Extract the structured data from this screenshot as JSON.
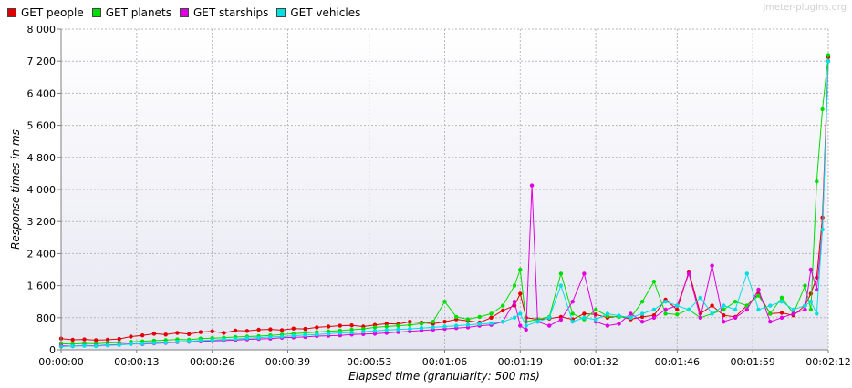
{
  "watermark": "jmeter-plugins.org",
  "chart_data": {
    "type": "line",
    "title": "",
    "xlabel": "Elapsed time (granularity: 500 ms)",
    "ylabel": "Response times in ms",
    "x_unit": "seconds",
    "xlim": [
      0,
      132
    ],
    "ylim": [
      0,
      8000
    ],
    "y_ticks": [
      0,
      800,
      1600,
      2400,
      3200,
      4000,
      4800,
      5600,
      6400,
      7200,
      8000
    ],
    "y_tick_labels": [
      "0",
      "800",
      "1 600",
      "2 400",
      "3 200",
      "4 000",
      "4 800",
      "5 600",
      "6 400",
      "7 200",
      "8 000"
    ],
    "x_ticks": [
      0,
      13,
      26,
      39,
      53,
      66,
      79,
      92,
      106,
      119,
      132
    ],
    "x_tick_labels": [
      "00:00:00",
      "00:00:13",
      "00:00:26",
      "00:00:39",
      "00:00:53",
      "00:01:06",
      "00:01:19",
      "00:01:32",
      "00:01:46",
      "00:01:59",
      "00:02:12"
    ],
    "grid": true,
    "legend_position": "top-left",
    "series": [
      {
        "name": "GET people",
        "color": "#e00000",
        "x": [
          0,
          2,
          4,
          6,
          8,
          10,
          12,
          14,
          16,
          18,
          20,
          22,
          24,
          26,
          28,
          30,
          32,
          34,
          36,
          38,
          40,
          42,
          44,
          46,
          48,
          50,
          52,
          54,
          56,
          58,
          60,
          62,
          64,
          66,
          68,
          70,
          72,
          74,
          76,
          78,
          79,
          80,
          82,
          84,
          86,
          88,
          90,
          92,
          94,
          96,
          98,
          100,
          102,
          104,
          106,
          108,
          110,
          112,
          114,
          116,
          118,
          120,
          122,
          124,
          126,
          128,
          129,
          130,
          131,
          132
        ],
        "y": [
          280,
          250,
          260,
          240,
          250,
          270,
          330,
          360,
          400,
          380,
          420,
          390,
          440,
          460,
          420,
          480,
          470,
          500,
          510,
          490,
          530,
          520,
          560,
          580,
          600,
          610,
          580,
          620,
          650,
          640,
          700,
          680,
          650,
          700,
          760,
          720,
          680,
          800,
          980,
          1100,
          1400,
          800,
          760,
          780,
          820,
          760,
          900,
          880,
          800,
          840,
          760,
          820,
          860,
          1250,
          1000,
          1950,
          900,
          1100,
          860,
          820,
          1100,
          1400,
          900,
          920,
          860,
          1100,
          1400,
          1800,
          3300,
          7300
        ]
      },
      {
        "name": "GET planets",
        "color": "#00dd00",
        "x": [
          0,
          2,
          4,
          6,
          8,
          10,
          12,
          14,
          16,
          18,
          20,
          22,
          24,
          26,
          28,
          30,
          32,
          34,
          36,
          38,
          40,
          42,
          44,
          46,
          48,
          50,
          52,
          54,
          56,
          58,
          60,
          62,
          64,
          66,
          68,
          70,
          72,
          74,
          76,
          78,
          79,
          80,
          82,
          84,
          86,
          88,
          90,
          92,
          94,
          96,
          98,
          100,
          102,
          104,
          106,
          108,
          110,
          112,
          114,
          116,
          118,
          120,
          122,
          124,
          126,
          128,
          129,
          130,
          131,
          132
        ],
        "y": [
          150,
          140,
          160,
          150,
          170,
          180,
          200,
          210,
          230,
          240,
          260,
          250,
          280,
          290,
          300,
          320,
          330,
          340,
          360,
          380,
          400,
          420,
          440,
          460,
          480,
          500,
          520,
          560,
          580,
          600,
          620,
          650,
          700,
          1200,
          820,
          760,
          820,
          900,
          1100,
          1600,
          2000,
          700,
          760,
          820,
          1900,
          900,
          760,
          1000,
          840,
          820,
          800,
          1200,
          1700,
          900,
          880,
          1000,
          800,
          900,
          1000,
          1200,
          1100,
          1350,
          900,
          1300,
          900,
          1600,
          1000,
          4200,
          6000,
          7350
        ]
      },
      {
        "name": "GET starships",
        "color": "#e000e0",
        "x": [
          0,
          2,
          4,
          6,
          8,
          10,
          12,
          14,
          16,
          18,
          20,
          22,
          24,
          26,
          28,
          30,
          32,
          34,
          36,
          38,
          40,
          42,
          44,
          46,
          48,
          50,
          52,
          54,
          56,
          58,
          60,
          62,
          64,
          66,
          68,
          70,
          72,
          74,
          76,
          78,
          79,
          80,
          81,
          82,
          84,
          86,
          88,
          90,
          92,
          94,
          96,
          98,
          100,
          102,
          104,
          106,
          108,
          110,
          112,
          114,
          116,
          118,
          120,
          122,
          124,
          126,
          128,
          129,
          130,
          131,
          132
        ],
        "y": [
          100,
          90,
          110,
          100,
          120,
          130,
          150,
          140,
          160,
          170,
          190,
          200,
          210,
          220,
          230,
          240,
          260,
          270,
          280,
          300,
          310,
          320,
          340,
          350,
          360,
          380,
          390,
          400,
          420,
          440,
          460,
          480,
          500,
          520,
          540,
          560,
          600,
          620,
          700,
          1200,
          600,
          500,
          4100,
          700,
          600,
          750,
          1200,
          1900,
          700,
          600,
          650,
          900,
          700,
          800,
          1000,
          1100,
          1900,
          800,
          2100,
          700,
          800,
          1000,
          1500,
          700,
          800,
          900,
          1000,
          2000,
          1500,
          3000,
          7200
        ]
      },
      {
        "name": "GET vehicles",
        "color": "#00e0e0",
        "x": [
          0,
          2,
          4,
          6,
          8,
          10,
          12,
          14,
          16,
          18,
          20,
          22,
          24,
          26,
          28,
          30,
          32,
          34,
          36,
          38,
          40,
          42,
          44,
          46,
          48,
          50,
          52,
          54,
          56,
          58,
          60,
          62,
          64,
          66,
          68,
          70,
          72,
          74,
          76,
          78,
          79,
          80,
          82,
          84,
          86,
          88,
          90,
          92,
          94,
          96,
          98,
          100,
          102,
          104,
          106,
          108,
          110,
          112,
          114,
          116,
          118,
          120,
          122,
          124,
          126,
          128,
          129,
          130,
          131,
          132
        ],
        "y": [
          80,
          90,
          100,
          90,
          110,
          120,
          140,
          150,
          170,
          180,
          200,
          210,
          230,
          240,
          260,
          270,
          290,
          300,
          320,
          330,
          350,
          370,
          380,
          400,
          420,
          430,
          450,
          470,
          490,
          510,
          520,
          540,
          560,
          580,
          600,
          620,
          640,
          660,
          700,
          800,
          900,
          600,
          700,
          800,
          1600,
          700,
          800,
          750,
          900,
          850,
          800,
          900,
          1000,
          1200,
          1100,
          1000,
          1300,
          900,
          1100,
          1000,
          1900,
          1000,
          1100,
          1200,
          1000,
          1100,
          1200,
          900,
          3000,
          7200
        ]
      }
    ]
  }
}
